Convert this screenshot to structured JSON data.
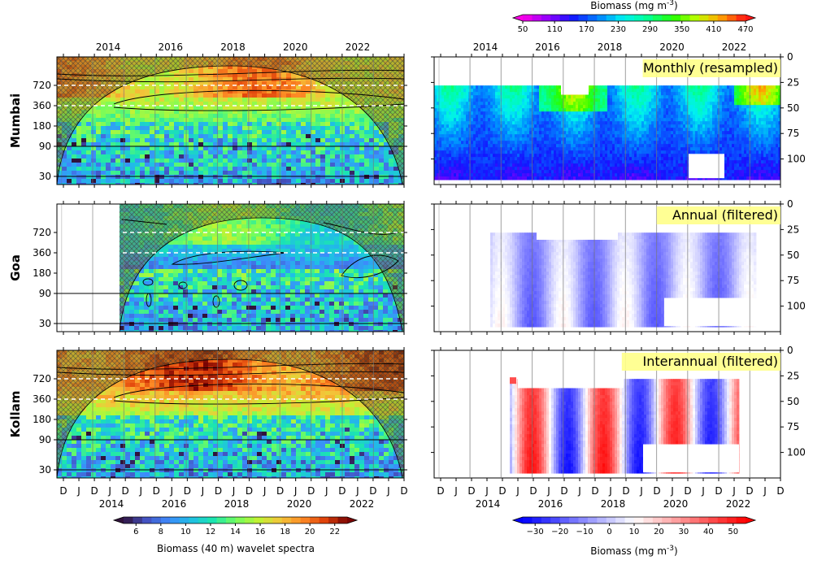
{
  "chart_data": [
    {
      "type": "heatmap",
      "panel": "wavelet",
      "title": "",
      "colorbar": {
        "label": "Biomass (40 m) wavelet spectra",
        "ticks": [
          "6",
          "8",
          "10",
          "12",
          "14",
          "16",
          "18",
          "20",
          "22"
        ],
        "range": [
          5,
          23
        ],
        "colormap": "turbo"
      },
      "x_ticks_top": [
        "2014",
        "2016",
        "2018",
        "2020",
        "2022"
      ],
      "x_ticks_bottom": [
        "D",
        "J",
        "D",
        "J",
        "D",
        "J",
        "D",
        "J",
        "D",
        "J",
        "D",
        "J",
        "D",
        "J",
        "D",
        "J",
        "D",
        "J",
        "D",
        "J",
        "D",
        "J",
        "D"
      ],
      "x_years_bottom": [
        "2014",
        "2016",
        "2018",
        "2020",
        "2022"
      ],
      "y_ticks": [
        "720",
        "360",
        "180",
        "90",
        "30"
      ],
      "rows": [
        {
          "name": "Mumbai",
          "significant_periods_days": [
            720,
            360
          ],
          "dominant_power": 19,
          "data_start": "2012"
        },
        {
          "name": "Goa",
          "significant_periods_days": [
            360
          ],
          "dominant_power": 14,
          "data_start": "2015"
        },
        {
          "name": "Kollam",
          "significant_periods_days": [
            720,
            360
          ],
          "dominant_power": 21,
          "data_start": "2012"
        }
      ]
    },
    {
      "type": "heatmap",
      "panel": "depth-time",
      "title": "Monthly (resampled)",
      "colorbar": {
        "label": "Biomass (mg m$^{-3}$)",
        "ticks": [
          "50",
          "110",
          "170",
          "230",
          "290",
          "350",
          "410",
          "470"
        ],
        "range": [
          50,
          470
        ],
        "colormap": "gist_rainbow_r"
      },
      "x_ticks_top": [
        "2014",
        "2016",
        "2018",
        "2020",
        "2022"
      ],
      "y_ticks": [
        "0",
        "25",
        "50",
        "75",
        "100"
      ],
      "ylim": [
        0,
        125
      ],
      "ylabel": ""
    },
    {
      "type": "heatmap",
      "panel": "depth-time",
      "title": "Annual (filtered)",
      "colormap": "bwr",
      "y_ticks": [
        "0",
        "25",
        "50",
        "75",
        "100"
      ],
      "ylim": [
        0,
        125
      ]
    },
    {
      "type": "heatmap",
      "panel": "depth-time",
      "title": "Interannual (filtered)",
      "colorbar": {
        "label": "Biomass (mg m$^{-3}$)",
        "ticks": [
          "−30",
          "−20",
          "−10",
          "0",
          "10",
          "20",
          "30",
          "40",
          "50"
        ],
        "range": [
          -35,
          55
        ],
        "colormap": "bwr"
      },
      "x_ticks_bottom": [
        "D",
        "J",
        "D",
        "J",
        "D",
        "J",
        "D",
        "J",
        "D",
        "J",
        "D",
        "J",
        "D",
        "J",
        "D",
        "J",
        "D",
        "J",
        "D",
        "J",
        "D",
        "J",
        "D"
      ],
      "x_years_bottom": [
        "2014",
        "2016",
        "2018",
        "2020",
        "2022"
      ],
      "y_ticks": [
        "0",
        "25",
        "50",
        "75",
        "100"
      ],
      "ylim": [
        0,
        125
      ]
    }
  ]
}
